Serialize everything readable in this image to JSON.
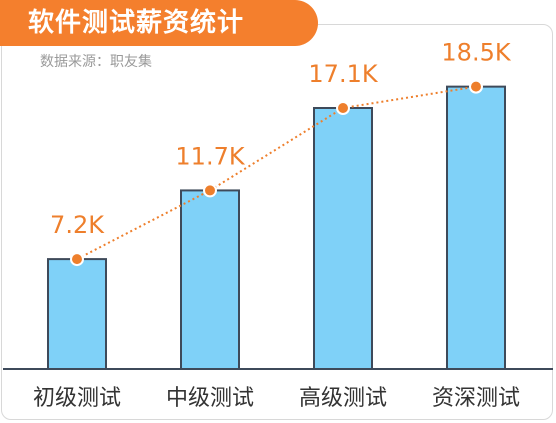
{
  "header": {
    "title": "软件测试薪资统计",
    "source": "数据来源：职友集"
  },
  "colors": {
    "accent": "#f47f2d",
    "bar_fill": "#7fd1f8",
    "bar_stroke": "#3e4a5a",
    "trend": "#ee7f2c"
  },
  "chart_data": {
    "type": "bar",
    "title": "软件测试薪资统计",
    "subtitle": "数据来源：职友集",
    "categories": [
      "初级测试",
      "中级测试",
      "高级测试",
      "资深测试"
    ],
    "values": [
      7.2,
      11.7,
      17.1,
      18.5
    ],
    "value_labels": [
      "7.2K",
      "11.7K",
      "17.1K",
      "18.5K"
    ],
    "unit": "K",
    "ylim": [
      0,
      20.9
    ],
    "overlay": "dotted-trend-line",
    "grid": false,
    "legend": "none"
  }
}
